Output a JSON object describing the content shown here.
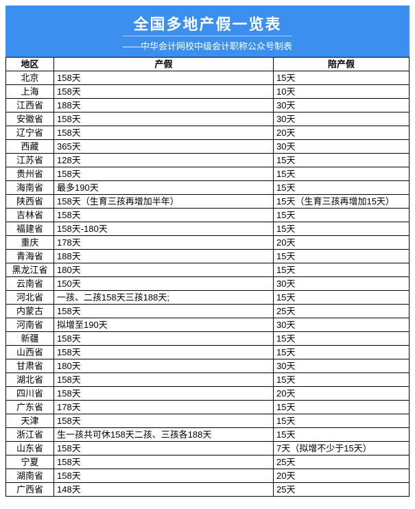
{
  "header": {
    "title": "全国多地产假一览表",
    "subtitle": "——中华会计网校中级会计职称公众号制表"
  },
  "columns": [
    "地区",
    "产假",
    "陪产假"
  ],
  "rows": [
    {
      "region": "北京",
      "leave": "158天",
      "paternity": "15天"
    },
    {
      "region": "上海",
      "leave": "158天",
      "paternity": "10天"
    },
    {
      "region": "江西省",
      "leave": "188天",
      "paternity": "30天"
    },
    {
      "region": "安徽省",
      "leave": "158天",
      "paternity": "30天"
    },
    {
      "region": "辽宁省",
      "leave": "158天",
      "paternity": "20天"
    },
    {
      "region": "西藏",
      "leave": "365天",
      "paternity": "30天"
    },
    {
      "region": "江苏省",
      "leave": "128天",
      "paternity": "15天"
    },
    {
      "region": "贵州省",
      "leave": "158天",
      "paternity": "15天"
    },
    {
      "region": "海南省",
      "leave": "最多190天",
      "paternity": "15天"
    },
    {
      "region": "陕西省",
      "leave": "158天（生育三孩再增加半年）",
      "paternity": "15天（生育三孩再增加15天）"
    },
    {
      "region": "吉林省",
      "leave": "158天",
      "paternity": "15天"
    },
    {
      "region": "福建省",
      "leave": "158天-180天",
      "paternity": "15天"
    },
    {
      "region": "重庆",
      "leave": "178天",
      "paternity": "20天"
    },
    {
      "region": "青海省",
      "leave": "188天",
      "paternity": "15天"
    },
    {
      "region": "黑龙江省",
      "leave": "180天",
      "paternity": "15天"
    },
    {
      "region": "云南省",
      "leave": "150天",
      "paternity": "30天"
    },
    {
      "region": "河北省",
      "leave": "一孩、二孩158天三孩188天;",
      "paternity": "15天"
    },
    {
      "region": "内蒙古",
      "leave": "158天",
      "paternity": "25天"
    },
    {
      "region": "河南省",
      "leave": "拟增至190天",
      "paternity": "30天"
    },
    {
      "region": "新疆",
      "leave": "158天",
      "paternity": "15天"
    },
    {
      "region": "山西省",
      "leave": "158天",
      "paternity": "15天"
    },
    {
      "region": "甘肃省",
      "leave": "180天",
      "paternity": "30天"
    },
    {
      "region": "湖北省",
      "leave": "158天",
      "paternity": "15天"
    },
    {
      "region": "四川省",
      "leave": "158天",
      "paternity": "20天"
    },
    {
      "region": "广东省",
      "leave": "178天",
      "paternity": "15天"
    },
    {
      "region": "天津",
      "leave": "158天",
      "paternity": "15天"
    },
    {
      "region": "浙江省",
      "leave": "生一孩共可休158天二孩、三孩各188天",
      "paternity": "15天"
    },
    {
      "region": "山东省",
      "leave": "158天",
      "paternity": "7天（拟增不少于15天）"
    },
    {
      "region": "宁夏",
      "leave": "158天",
      "paternity": "25天"
    },
    {
      "region": "湖南省",
      "leave": "158天",
      "paternity": "20天"
    },
    {
      "region": "广西省",
      "leave": "148天",
      "paternity": "25天"
    }
  ],
  "styling": {
    "header_bg": "#3b8fee",
    "header_text": "#ffffff",
    "border_color": "#000000",
    "title_fontsize": 22,
    "subtitle_fontsize": 13,
    "cell_fontsize": 13
  }
}
